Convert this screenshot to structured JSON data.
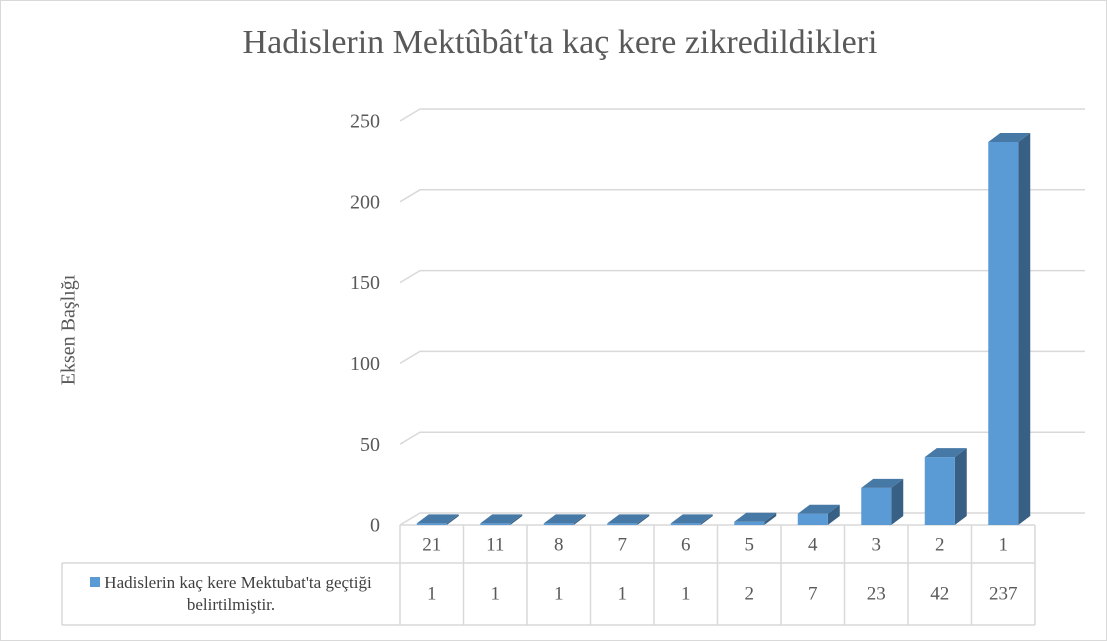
{
  "chart_data": {
    "type": "bar",
    "title": "Hadislerin Mektûbât'ta kaç kere zikredildikleri",
    "y_axis_label": "Eksen Başlığı",
    "categories": [
      "21",
      "11",
      "8",
      "7",
      "6",
      "5",
      "4",
      "3",
      "2",
      "1"
    ],
    "series": [
      {
        "name": "Hadislerin kaç kere Mektubat'ta geçtiği belirtilmiştir.",
        "color": "#5b9bd5",
        "values": [
          1,
          1,
          1,
          1,
          1,
          2,
          7,
          23,
          42,
          237
        ]
      }
    ],
    "ylim": [
      0,
      250
    ],
    "yticks": [
      0,
      50,
      100,
      150,
      200,
      250
    ],
    "grid": true,
    "data_table": true
  }
}
